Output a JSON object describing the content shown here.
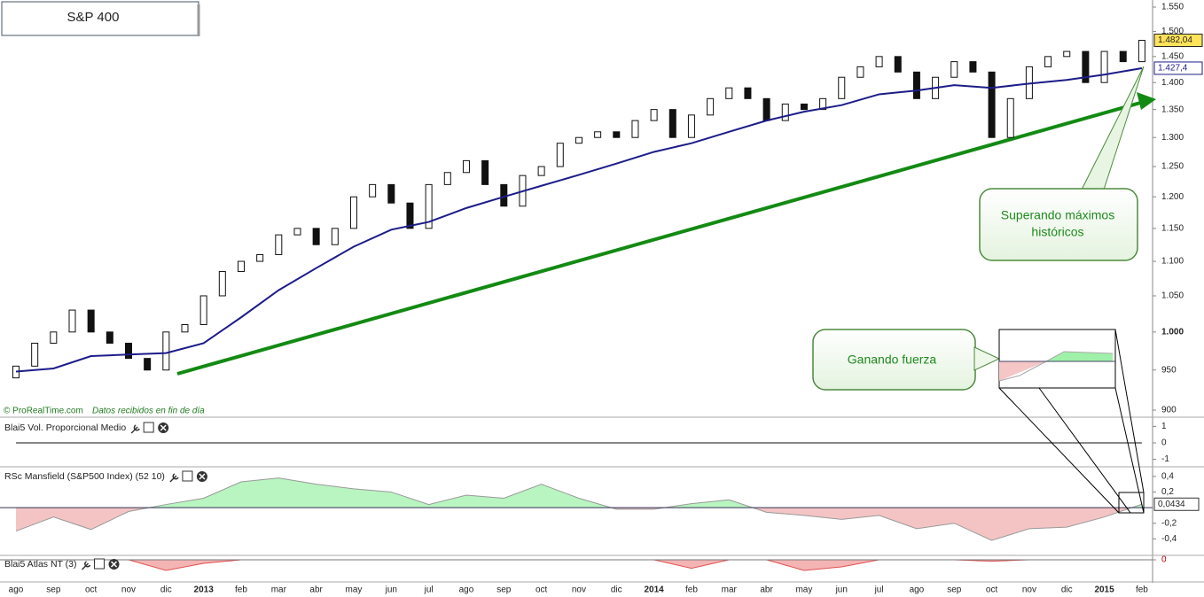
{
  "title": "S&P 400",
  "chart_data": {
    "type": "candlestick",
    "x_labels": [
      "ago",
      "sep",
      "oct",
      "nov",
      "dic",
      "2013",
      "feb",
      "mar",
      "abr",
      "may",
      "jun",
      "jul",
      "ago",
      "sep",
      "oct",
      "nov",
      "dic",
      "2014",
      "feb",
      "mar",
      "abr",
      "may",
      "jun",
      "jul",
      "ago",
      "sep",
      "oct",
      "nov",
      "dic",
      "2015",
      "feb"
    ],
    "open": [
      940,
      955,
      985,
      1000,
      1030,
      1000,
      985,
      965,
      950,
      1000,
      1010,
      1050,
      1085,
      1100,
      1110,
      1140,
      1150,
      1125,
      1150,
      1200,
      1220,
      1190,
      1150,
      1220,
      1240,
      1260,
      1220,
      1185,
      1235,
      1250,
      1290,
      1300,
      1310,
      1300,
      1330,
      1350,
      1300,
      1340,
      1370,
      1390,
      1370,
      1330,
      1360,
      1350,
      1370,
      1410,
      1430,
      1450,
      1420,
      1370,
      1410,
      1440,
      1420,
      1300,
      1370,
      1430,
      1450,
      1460,
      1400,
      1460,
      1440
    ],
    "close": [
      955,
      985,
      1000,
      1030,
      1000,
      985,
      965,
      950,
      1000,
      1010,
      1050,
      1085,
      1100,
      1110,
      1140,
      1150,
      1125,
      1150,
      1200,
      1220,
      1190,
      1150,
      1220,
      1240,
      1260,
      1220,
      1185,
      1235,
      1250,
      1290,
      1300,
      1310,
      1300,
      1330,
      1350,
      1300,
      1340,
      1370,
      1390,
      1370,
      1330,
      1360,
      1350,
      1370,
      1410,
      1430,
      1450,
      1420,
      1370,
      1410,
      1440,
      1420,
      1300,
      1370,
      1430,
      1450,
      1460,
      1400,
      1460,
      1440,
      1482.04
    ],
    "ma": {
      "color": "#1c1c8a",
      "values": [
        948,
        952,
        968,
        970,
        972,
        985,
        1020,
        1058,
        1090,
        1122,
        1148,
        1160,
        1182,
        1200,
        1218,
        1236,
        1255,
        1275,
        1290,
        1310,
        1330,
        1346,
        1358,
        1378,
        1385,
        1395,
        1390,
        1398,
        1405,
        1415,
        1427.4
      ]
    },
    "log_scale": true,
    "ylim": [
      900,
      1550
    ],
    "yticks": [
      {
        "value": 1550,
        "label": "1.550"
      },
      {
        "value": 1500,
        "label": "1.500"
      },
      {
        "value": 1450,
        "label": "1.450"
      },
      {
        "value": 1400,
        "label": "1.400"
      },
      {
        "value": 1350,
        "label": "1.350"
      },
      {
        "value": 1300,
        "label": "1.300"
      },
      {
        "value": 1250,
        "label": "1.250"
      },
      {
        "value": 1200,
        "label": "1.200"
      },
      {
        "value": 1150,
        "label": "1.150"
      },
      {
        "value": 1100,
        "label": "1.100"
      },
      {
        "value": 1050,
        "label": "1.050"
      },
      {
        "value": 1000,
        "label": "1.000"
      },
      950,
      900
    ],
    "last_price": {
      "value": 1482.04,
      "label": "1.482,04"
    },
    "ma_last": {
      "value": 1427.4,
      "label": "1.427,4"
    },
    "credit": "© ProRealTime.com",
    "note": "Datos recibidos en fin de día",
    "callout_top": [
      "Superando máximos",
      "históricos"
    ],
    "callout_mid": "Ganando fuerza"
  },
  "indicators": [
    {
      "title": "Blai5 Vol. Proporcional Medio",
      "ylim": [
        -1.4,
        1.4
      ],
      "yticks": [
        1,
        0,
        -1
      ],
      "values": [
        0,
        0,
        0,
        0,
        0,
        0,
        0,
        0,
        0,
        0,
        0,
        0,
        0,
        0,
        0,
        0,
        0,
        0,
        0,
        0,
        0,
        0,
        0,
        0,
        0,
        0,
        0,
        0,
        0,
        0,
        0
      ]
    },
    {
      "title": "RSc Mansfield (S&P500 Index) (52 10)",
      "ylim": [
        -0.6,
        0.5
      ],
      "yticks": [
        {
          "value": 0.4,
          "label": "0,4"
        },
        {
          "value": 0.2,
          "label": "0,2"
        },
        {
          "value": -0.2,
          "label": "-0,2"
        },
        {
          "value": -0.4,
          "label": "-0,4"
        }
      ],
      "values": [
        -0.3,
        -0.12,
        -0.28,
        -0.05,
        0.04,
        0.12,
        0.33,
        0.38,
        0.3,
        0.24,
        0.2,
        0.04,
        0.16,
        0.12,
        0.3,
        0.12,
        -0.02,
        -0.02,
        0.05,
        0.1,
        -0.06,
        -0.1,
        -0.15,
        -0.1,
        -0.27,
        -0.2,
        -0.42,
        -0.27,
        -0.25,
        -0.12,
        0.0434
      ],
      "last": {
        "value": 0.0434,
        "label": "0,0434"
      }
    },
    {
      "title": "Blai5 Atlas NT (3)",
      "ylim": [
        -3,
        0.5
      ],
      "yticks": [
        0
      ],
      "values": [
        0,
        0,
        0,
        0,
        -1.5,
        -0.5,
        0,
        0,
        0,
        0,
        0,
        0,
        0,
        0,
        0,
        0,
        0,
        0,
        -1.2,
        0,
        0,
        -1.5,
        -1,
        0,
        0,
        0,
        -0.2,
        0,
        0,
        0,
        0
      ]
    }
  ]
}
